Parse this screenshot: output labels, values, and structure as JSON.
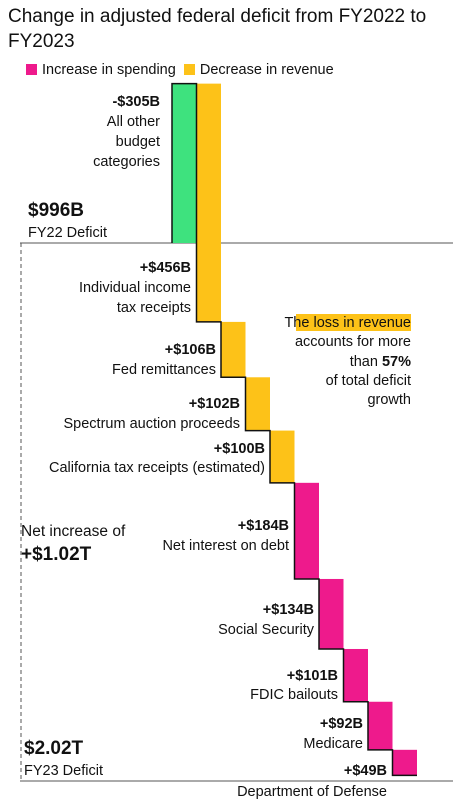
{
  "title": "Change in adjusted federal deficit from FY2022 to FY2023",
  "legend": [
    {
      "label": "Increase in spending",
      "color": "#ee1a8c"
    },
    {
      "label": "Decrease in revenue",
      "color": "#fdc218"
    }
  ],
  "colors": {
    "other": "#3ee27e",
    "spending": "#ee1a8c",
    "revenue": "#fdc218"
  },
  "chart_data": {
    "type": "waterfall",
    "unit": "$B",
    "start": {
      "name": "FY22 Deficit",
      "label": "$996B",
      "value": 996
    },
    "end": {
      "name": "FY23 Deficit",
      "label": "$2.02T",
      "value": 2020
    },
    "net": {
      "text": "Net increase of",
      "label": "+$1.02T",
      "value": 1020
    },
    "steps": [
      {
        "name": "All other budget categories",
        "label": "-$305B",
        "value": -305,
        "kind": "other"
      },
      {
        "name": "Individual income tax receipts",
        "label": "+$456B",
        "value": 456,
        "kind": "revenue"
      },
      {
        "name": "Fed remittances",
        "label": "+$106B",
        "value": 106,
        "kind": "revenue"
      },
      {
        "name": "Spectrum auction proceeds",
        "label": "+$102B",
        "value": 102,
        "kind": "revenue"
      },
      {
        "name": "California tax receipts (estimated)",
        "label": "+$100B",
        "value": 100,
        "kind": "revenue"
      },
      {
        "name": "Net interest on debt",
        "label": "+$184B",
        "value": 184,
        "kind": "spending"
      },
      {
        "name": "Social Security",
        "label": "+$134B",
        "value": 134,
        "kind": "spending"
      },
      {
        "name": "FDIC bailouts",
        "label": "+$101B",
        "value": 101,
        "kind": "spending"
      },
      {
        "name": "Medicare",
        "label": "+$92B",
        "value": 92,
        "kind": "spending"
      },
      {
        "name": "Department of Defense",
        "label": "+$49B",
        "value": 49,
        "kind": "spending"
      }
    ],
    "annotation": {
      "pre": "The",
      "highlight": "loss in revenue",
      "line2": "accounts for more",
      "line3_pre": "than",
      "pct": "57%",
      "line4": "of total deficit",
      "line5": "growth"
    }
  }
}
